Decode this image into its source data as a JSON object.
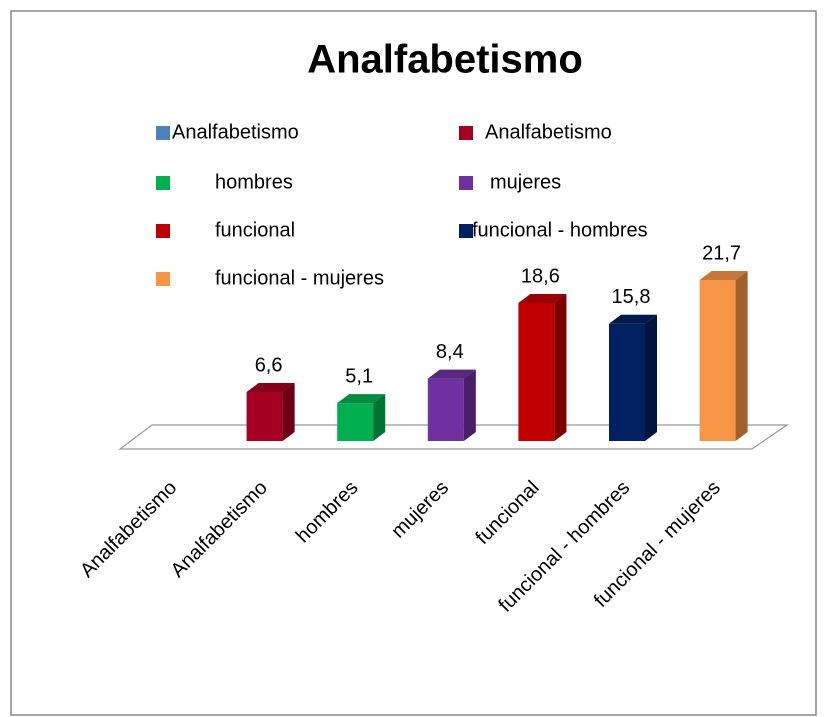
{
  "chart_data": {
    "type": "bar3d",
    "title": "Analfabetismo",
    "categories": [
      "Analfabetismo",
      "Analfabetismo",
      "hombres",
      "mujeres",
      "funcional",
      "funcional - hombres",
      "funcional - mujeres"
    ],
    "values": [
      null,
      6.6,
      5.1,
      8.4,
      18.6,
      15.8,
      21.7
    ],
    "value_labels": [
      null,
      "6,6",
      "5,1",
      "8,4",
      "18,6",
      "15,8",
      "21,7"
    ],
    "colors": [
      "#4f81bd",
      "#a50021",
      "#00b050",
      "#7030a0",
      "#c00000",
      "#002060",
      "#f79646"
    ]
  }
}
